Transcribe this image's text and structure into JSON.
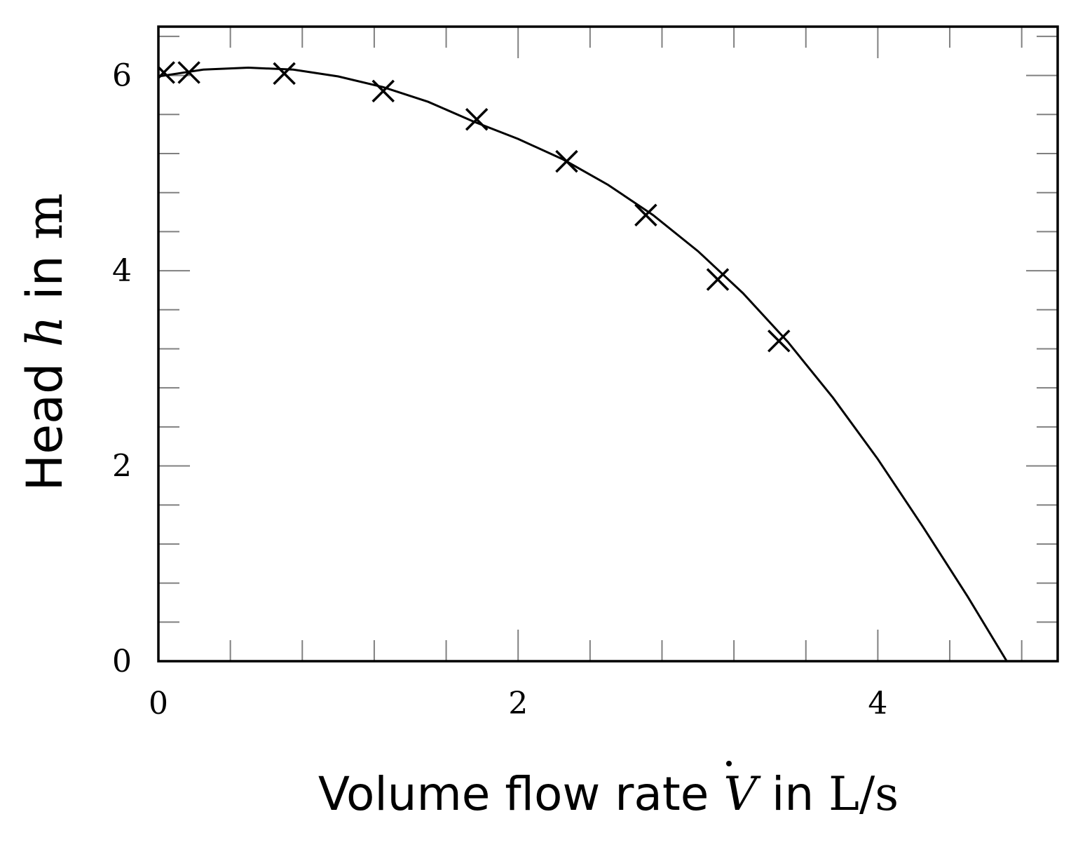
{
  "chart_data": {
    "type": "scatter",
    "xlabel": {
      "prefix": "Volume flow rate ",
      "symbol": "V",
      "middle": " in ",
      "unit": "L/s"
    },
    "ylabel": {
      "prefix": "Head ",
      "symbol": "h",
      "middle": " in ",
      "unit": "m"
    },
    "xlim": [
      0,
      5
    ],
    "ylim": [
      0,
      6.5
    ],
    "xticks": [
      0,
      2,
      4
    ],
    "yticks": [
      0,
      2,
      4,
      6
    ],
    "x_minor_step": 0.4,
    "y_minor_step": 0.4,
    "grid": false,
    "series": [
      {
        "kind": "markers",
        "marker": "x",
        "x": [
          0.03,
          0.17,
          0.7,
          1.25,
          1.77,
          2.27,
          2.71,
          3.11,
          3.45
        ],
        "y": [
          6.03,
          6.03,
          6.02,
          5.84,
          5.55,
          5.12,
          4.57,
          3.91,
          3.28
        ]
      },
      {
        "kind": "line",
        "x": [
          0.0,
          0.25,
          0.5,
          0.75,
          1.0,
          1.25,
          1.5,
          1.75,
          2.0,
          2.25,
          2.5,
          2.75,
          3.0,
          3.25,
          3.5,
          3.75,
          4.0,
          4.25,
          4.5,
          4.75,
          4.88
        ],
        "y": [
          5.99,
          6.06,
          6.08,
          6.06,
          5.99,
          5.88,
          5.73,
          5.53,
          5.35,
          5.14,
          4.88,
          4.57,
          4.2,
          3.77,
          3.27,
          2.7,
          2.07,
          1.38,
          0.66,
          -0.1,
          -0.5
        ]
      }
    ]
  }
}
